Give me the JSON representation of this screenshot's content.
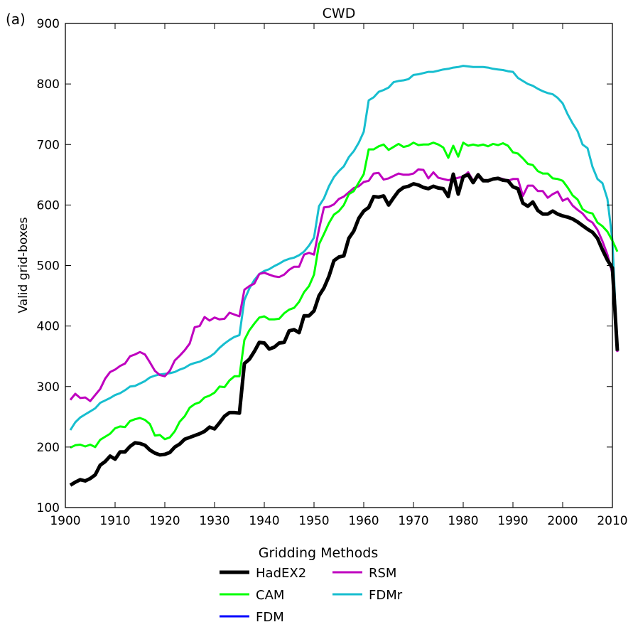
{
  "panel_label": "(a)",
  "chart_data": {
    "type": "line",
    "title": "CWD",
    "xlabel": "",
    "ylabel": "Valid grid-boxes",
    "xlim": [
      1900,
      2010
    ],
    "ylim": [
      100,
      900
    ],
    "xticks": [
      1900,
      1910,
      1920,
      1930,
      1940,
      1950,
      1960,
      1970,
      1980,
      1990,
      2000,
      2010
    ],
    "yticks": [
      100,
      200,
      300,
      400,
      500,
      600,
      700,
      800,
      900
    ],
    "grid": false,
    "legend": {
      "title": "Gridding Methods",
      "placement": "bottom",
      "columns": 2
    },
    "x_start": 1901,
    "series": [
      {
        "name": "HadEX2",
        "color": "#000000",
        "values": [
          137,
          142,
          146,
          144,
          148,
          154,
          170,
          176,
          185,
          180,
          192,
          192,
          201,
          207,
          206,
          203,
          195,
          190,
          187,
          188,
          191,
          200,
          205,
          213,
          216,
          219,
          222,
          226,
          233,
          230,
          240,
          251,
          257,
          257,
          256,
          338,
          345,
          358,
          373,
          372,
          362,
          365,
          372,
          373,
          392,
          394,
          389,
          417,
          417,
          425,
          450,
          463,
          482,
          508,
          514,
          516,
          545,
          557,
          578,
          590,
          596,
          614,
          613,
          615,
          600,
          612,
          623,
          629,
          631,
          635,
          633,
          629,
          627,
          631,
          628,
          627,
          614,
          651,
          618,
          647,
          650,
          637,
          650,
          640,
          640,
          643,
          644,
          641,
          640,
          630,
          627,
          603,
          598,
          605,
          591,
          585,
          585,
          590,
          585,
          582,
          580,
          577,
          572,
          566,
          560,
          555,
          545,
          526,
          509,
          496,
          359
        ]
      },
      {
        "name": "CAM",
        "color": "#00ff00",
        "values": [
          199,
          203,
          204,
          201,
          204,
          200,
          212,
          217,
          222,
          231,
          234,
          233,
          243,
          246,
          248,
          245,
          238,
          219,
          220,
          213,
          216,
          226,
          242,
          251,
          265,
          271,
          274,
          282,
          285,
          290,
          300,
          299,
          310,
          317,
          317,
          377,
          393,
          404,
          414,
          416,
          411,
          411,
          412,
          421,
          427,
          430,
          440,
          456,
          466,
          485,
          535,
          552,
          570,
          584,
          590,
          600,
          618,
          623,
          637,
          651,
          692,
          692,
          697,
          700,
          691,
          696,
          701,
          696,
          698,
          703,
          699,
          700,
          700,
          703,
          700,
          695,
          678,
          698,
          680,
          703,
          698,
          700,
          698,
          700,
          697,
          701,
          699,
          702,
          698,
          687,
          685,
          677,
          668,
          666,
          656,
          652,
          652,
          644,
          643,
          640,
          629,
          616,
          609,
          593,
          588,
          586,
          571,
          565,
          556,
          541,
          523
        ]
      },
      {
        "name": "FDM",
        "color": "#0000ff",
        "values": []
      },
      {
        "name": "RSM",
        "color": "#bf00bf",
        "values": [
          278,
          288,
          281,
          282,
          276,
          286,
          296,
          313,
          324,
          328,
          334,
          338,
          350,
          353,
          357,
          353,
          340,
          326,
          319,
          317,
          326,
          343,
          351,
          360,
          371,
          398,
          400,
          415,
          409,
          414,
          411,
          412,
          422,
          419,
          416,
          460,
          466,
          470,
          486,
          488,
          485,
          482,
          481,
          485,
          493,
          498,
          498,
          518,
          521,
          518,
          560,
          596,
          597,
          601,
          610,
          614,
          621,
          628,
          631,
          638,
          640,
          652,
          653,
          642,
          644,
          648,
          652,
          650,
          650,
          652,
          659,
          658,
          644,
          654,
          645,
          643,
          641,
          643,
          645,
          647,
          654,
          640,
          646,
          642,
          639,
          643,
          645,
          643,
          640,
          643,
          643,
          615,
          632,
          632,
          623,
          623,
          612,
          618,
          622,
          607,
          611,
          599,
          592,
          586,
          576,
          571,
          559,
          540,
          518,
          487,
          357
        ]
      },
      {
        "name": "FDMr",
        "color": "#17becf",
        "values": [
          228,
          241,
          249,
          254,
          259,
          264,
          273,
          277,
          281,
          286,
          289,
          294,
          300,
          301,
          305,
          309,
          315,
          318,
          320,
          321,
          322,
          324,
          328,
          331,
          336,
          339,
          341,
          345,
          349,
          355,
          364,
          371,
          377,
          382,
          385,
          443,
          462,
          476,
          486,
          491,
          494,
          499,
          503,
          508,
          511,
          513,
          517,
          523,
          533,
          546,
          598,
          611,
          631,
          646,
          656,
          664,
          679,
          689,
          703,
          721,
          773,
          778,
          787,
          790,
          794,
          803,
          805,
          806,
          808,
          815,
          816,
          818,
          820,
          820,
          822,
          824,
          825,
          827,
          828,
          830,
          829,
          828,
          828,
          828,
          827,
          825,
          824,
          823,
          821,
          820,
          810,
          805,
          800,
          797,
          792,
          788,
          785,
          783,
          777,
          768,
          750,
          735,
          722,
          700,
          694,
          663,
          643,
          636,
          610,
          542,
          358
        ]
      }
    ]
  }
}
